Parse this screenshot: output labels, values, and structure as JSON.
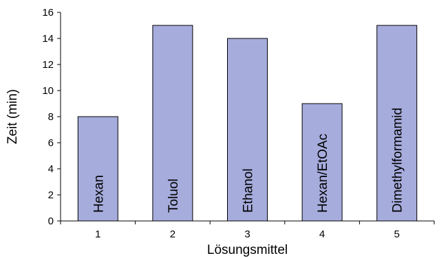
{
  "chart_data": {
    "type": "bar",
    "categories": [
      "1",
      "2",
      "3",
      "4",
      "5"
    ],
    "values": [
      8,
      15,
      14,
      9,
      15
    ],
    "bar_labels": [
      "Hexan",
      "Toluol",
      "Ethanol",
      "Hexan/EtOAc",
      "Dimethylformamid"
    ],
    "title": "",
    "xlabel": "Lösungsmittel",
    "ylabel": "Zeit (min)",
    "ylim": [
      0,
      16
    ],
    "yticks": [
      0,
      2,
      4,
      6,
      8,
      10,
      12,
      14,
      16
    ],
    "grid": false,
    "legend": "none",
    "colors": {
      "bar_fill": "#a6acdc",
      "bar_stroke": "#000000",
      "axis": "#000000"
    }
  }
}
